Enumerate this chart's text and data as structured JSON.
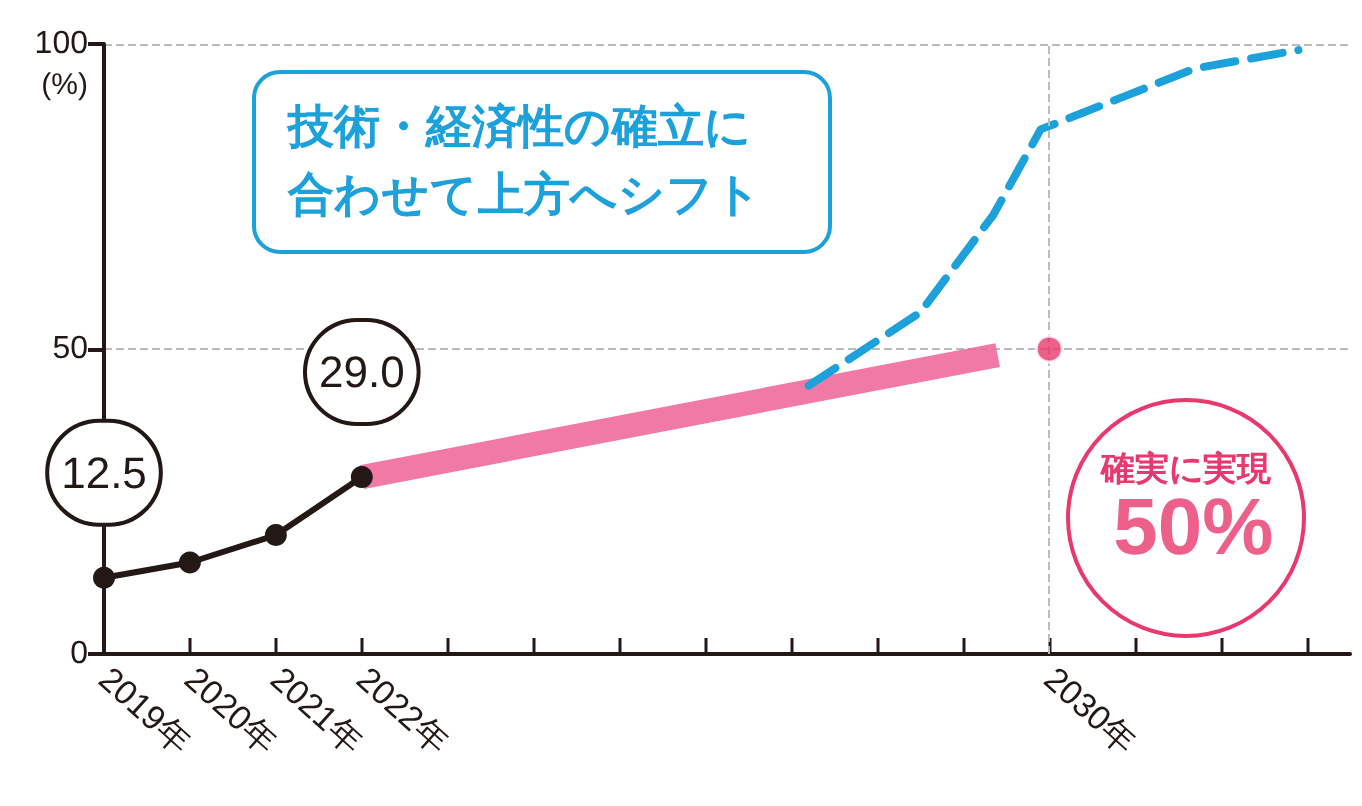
{
  "chart_data": {
    "type": "line",
    "ylabel": "(%)",
    "xlim": [
      2019,
      2033.5
    ],
    "xticks": [
      {
        "value": 2019,
        "label": "2019年"
      },
      {
        "value": 2020,
        "label": "2020年"
      },
      {
        "value": 2021,
        "label": "2021年"
      },
      {
        "value": 2022,
        "label": "2022年"
      },
      {
        "value": 2023,
        "label": null
      },
      {
        "value": 2024,
        "label": null
      },
      {
        "value": 2025,
        "label": null
      },
      {
        "value": 2026,
        "label": null
      },
      {
        "value": 2027,
        "label": null
      },
      {
        "value": 2028,
        "label": null
      },
      {
        "value": 2029,
        "label": null
      },
      {
        "value": 2030,
        "label": "2030年"
      },
      {
        "value": 2031,
        "label": null
      },
      {
        "value": 2032,
        "label": null
      },
      {
        "value": 2033,
        "label": null
      }
    ],
    "ylim": [
      0,
      100
    ],
    "yticks": [
      0,
      50,
      100
    ],
    "grid": "y",
    "ref_lines": [
      {
        "axis": "x",
        "value": 2030,
        "color": "#bbbbbb",
        "line_style": "dashed"
      }
    ],
    "annotations": [
      "技術・経済性の確立に合わせて上方へシフト",
      "確実に実現"
    ],
    "series": [
      {
        "x": [
          2019,
          2020,
          2021,
          2022
        ],
        "values": [
          12.5,
          15,
          19.5,
          29.0
        ],
        "color": "#231815",
        "marker": "circle",
        "line_style": "solid",
        "value_labels": [
          "12.5",
          null,
          null,
          "29.0"
        ]
      },
      {
        "x": [
          2022,
          2029.4
        ],
        "values": [
          29,
          49
        ],
        "color": "#ee6a9b",
        "marker": "none",
        "line_style": "solid"
      },
      {
        "x": [
          2027.2,
          2028.5,
          2029.35,
          2029.9,
          2030.8,
          2031.7,
          2032.9
        ],
        "values": [
          44,
          56,
          72,
          86,
          91,
          96,
          99
        ],
        "color": "#1da1db",
        "marker": "none",
        "line_style": "dashed"
      },
      {
        "type": "scatter",
        "x": [
          2030
        ],
        "values": [
          50
        ],
        "color": "#e8386d",
        "marker": "circle",
        "value_labels": [
          "50%"
        ]
      }
    ]
  }
}
